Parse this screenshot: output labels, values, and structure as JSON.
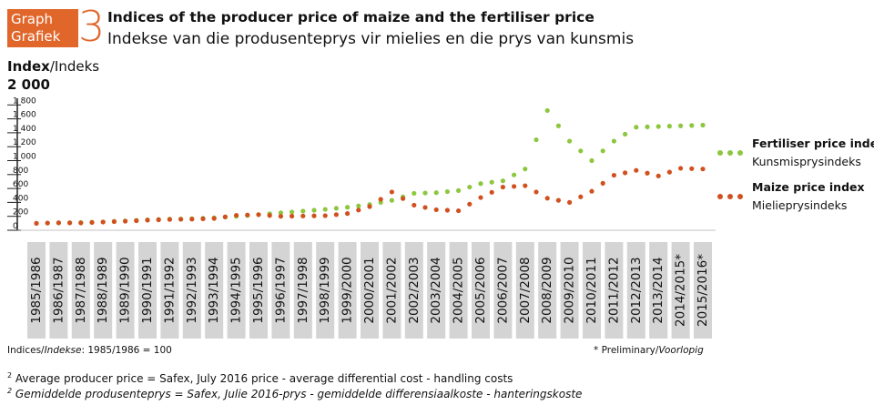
{
  "badge": {
    "line1": "Graph",
    "line2": "Grafiek",
    "number": "3"
  },
  "title": {
    "english": "Indices of the producer price of maize and the fertiliser price",
    "afrikaans": "Indekse van die produsenteprys vir mielies en die prys van kunsmis"
  },
  "axis": {
    "label_bold": "Index",
    "label_rest": "/Indeks",
    "top_label": "2 000"
  },
  "legend": [
    {
      "name": "Fertiliser price index",
      "sub": "Kunsmisprysindeks",
      "color": "#8dc63f"
    },
    {
      "name": "Maize price index",
      "sub": "Mielieprysindeks",
      "color": "#d1501f"
    }
  ],
  "footer": {
    "base_prefix": "Indices/",
    "base_italic": "Indekse",
    "base_suffix": ": 1985/1986 = 100",
    "prelim_prefix": "* Preliminary/",
    "prelim_italic": "Voorlopig"
  },
  "notes": {
    "mark": "2",
    "english": " Average producer price = Safex, July 2016 price - average differential cost - handling costs",
    "afrikaans": " Gemiddelde produsenteprys = Safex, Julie 2016-prys - gemiddelde differensiaalkoste - hanteringskoste"
  },
  "colors": {
    "accent": "#e0662a",
    "fertiliser": "#8dc63f",
    "maize": "#d1501f",
    "category_box": "#d4d4d4"
  },
  "chart_data": {
    "type": "line",
    "categories": [
      "1985/1986",
      "1986/1987",
      "1987/1988",
      "1988/1989",
      "1989/1990",
      "1990/1991",
      "1991/1992",
      "1992/1993",
      "1993/1994",
      "1994/1995",
      "1995/1996",
      "1996/1997",
      "1997/1998",
      "1998/1999",
      "1999/2000",
      "2000/2001",
      "2001/2002",
      "2002/2003",
      "2003/2004",
      "2004/2005",
      "2005/2006",
      "2006/2007",
      "2007/2008",
      "2008/2009",
      "2009/2010",
      "2010/2011",
      "2011/2012",
      "2012/2013",
      "2013/2014",
      "2014/2015*",
      "2015/2016*"
    ],
    "ylim": [
      0,
      2000
    ],
    "yticks": [
      0,
      200,
      400,
      600,
      800,
      1000,
      1200,
      1400,
      1600,
      1800
    ],
    "ytick_labels": [
      "0",
      "200",
      "400",
      "600",
      "800",
      "1 000",
      "1 200",
      "1 400",
      "1 600",
      "1 800"
    ],
    "series": [
      {
        "name": "Fertiliser price index",
        "key": "fertiliser",
        "values": [
          100,
          105,
          112,
          120,
          135,
          150,
          160,
          165,
          178,
          200,
          225,
          250,
          275,
          300,
          330,
          370,
          430,
          530,
          540,
          570,
          670,
          710,
          880,
          1720,
          1280,
          1000,
          1280,
          1480,
          1490,
          1500,
          1510
        ]
      },
      {
        "name": "Maize price index",
        "key": "maize",
        "values": [
          100,
          108,
          105,
          118,
          130,
          145,
          155,
          160,
          170,
          215,
          225,
          200,
          205,
          210,
          240,
          340,
          550,
          360,
          295,
          280,
          470,
          620,
          640,
          460,
          400,
          560,
          790,
          860,
          780,
          890,
          880
        ]
      }
    ]
  }
}
